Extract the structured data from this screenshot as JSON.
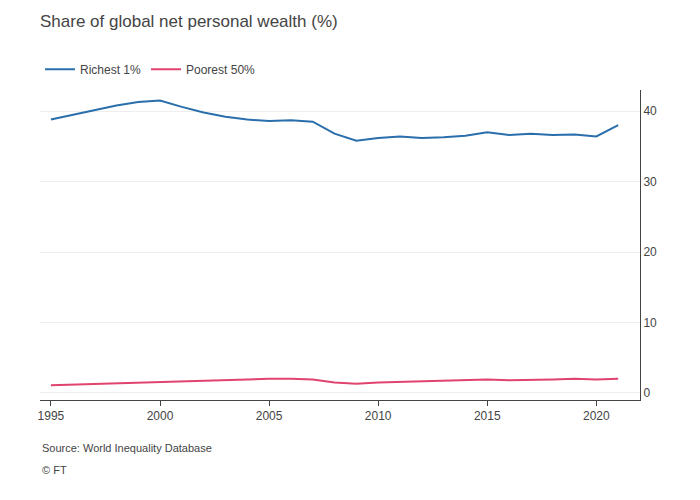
{
  "chart_data": {
    "type": "line",
    "title": "Share of global net personal wealth (%)",
    "x": [
      1995,
      1996,
      1997,
      1998,
      1999,
      2000,
      2001,
      2002,
      2003,
      2004,
      2005,
      2006,
      2007,
      2008,
      2009,
      2010,
      2011,
      2012,
      2013,
      2014,
      2015,
      2016,
      2017,
      2018,
      2019,
      2020,
      2021
    ],
    "series": [
      {
        "name": "Richest 1%",
        "color": "#2a6fac",
        "values": [
          38.8,
          39.5,
          40.2,
          40.8,
          41.3,
          41.5,
          40.6,
          39.8,
          39.2,
          38.8,
          38.6,
          38.7,
          38.5,
          36.8,
          35.8,
          36.2,
          36.4,
          36.2,
          36.3,
          36.5,
          37.0,
          36.6,
          36.8,
          36.6,
          36.7,
          36.4,
          38.0
        ]
      },
      {
        "name": "Poorest 50%",
        "color": "#e0436e",
        "values": [
          1.1,
          1.2,
          1.3,
          1.4,
          1.5,
          1.6,
          1.7,
          1.8,
          1.9,
          1.9,
          2.0,
          2.0,
          1.9,
          1.5,
          1.3,
          1.5,
          1.6,
          1.6,
          1.7,
          1.8,
          1.9,
          1.8,
          1.8,
          1.9,
          2.0,
          1.9,
          2.0
        ]
      }
    ],
    "xlim": [
      1994.5,
      2022.0
    ],
    "ylim": [
      -1.0,
      43.0
    ],
    "xticks": [
      1995,
      2000,
      2005,
      2010,
      2015,
      2020
    ],
    "yticks": [
      0,
      10,
      20,
      30,
      40
    ],
    "grid": true,
    "legend": "upper left",
    "annotations": [
      "Source: World Inequality Database",
      "© FT"
    ]
  }
}
